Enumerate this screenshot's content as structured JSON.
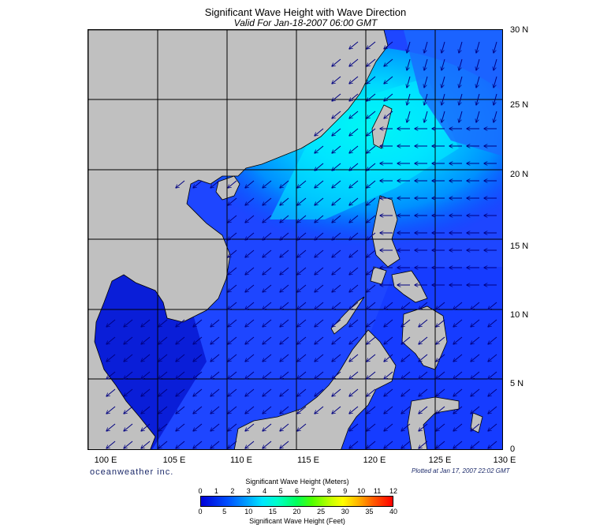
{
  "header": {
    "title": "Significant Wave Height with Wave Direction",
    "subtitle": "Valid For Jan-18-2007 06:00 GMT"
  },
  "map": {
    "lon_labels": [
      "100 E",
      "105 E",
      "110 E",
      "115 E",
      "120 E",
      "125 E",
      "130 E"
    ],
    "lat_labels": [
      "30 N",
      "25 N",
      "20 N",
      "15 N",
      "10 N",
      "5 N",
      "0"
    ],
    "land_color": "#c0c0c0",
    "coast_color": "#000000"
  },
  "footer": {
    "brand": "oceanweather inc.",
    "plotted": "Plotted at Jan 17, 2007 22:02 GMT"
  },
  "colorbar": {
    "meters_title": "Significant Wave Height (Meters)",
    "feet_title": "Significant Wave Height (Feet)",
    "meters_ticks": [
      "0",
      "1",
      "2",
      "3",
      "4",
      "5",
      "6",
      "7",
      "8",
      "9",
      "10",
      "11",
      "12"
    ],
    "feet_ticks": [
      "0",
      "5",
      "10",
      "15",
      "20",
      "25",
      "30",
      "35",
      "40"
    ]
  }
}
